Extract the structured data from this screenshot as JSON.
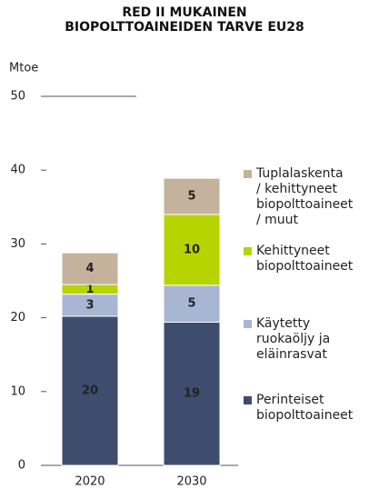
{
  "chart_data": {
    "type": "stacked_bar",
    "title": "RED II MUKAINEN\nBIOPOLTTOAINEIDEN TARVE EU28",
    "ylabel": "Mtoe",
    "categories": [
      "2020",
      "2030"
    ],
    "series": [
      {
        "name": "Perinteiset\nbiopolttoaineet",
        "color": "#3e4d6d",
        "values": [
          20.2,
          19.4
        ],
        "value_labels": [
          "20",
          "19"
        ]
      },
      {
        "name": "Käytetty\nruokaöljy ja\neläinrasvat",
        "color": "#a8b6d3",
        "values": [
          3.0,
          5.0
        ],
        "value_labels": [
          "3",
          "5"
        ]
      },
      {
        "name": "Kehittyneet\nbiopolttoaineet",
        "color": "#b6d400",
        "values": [
          1.3,
          9.6
        ],
        "value_labels": [
          "1",
          "10"
        ]
      },
      {
        "name": "Tuplalaskenta\n/ kehittyneet\nbiopolttoaineet\n/ muut",
        "color": "#c5b29d",
        "values": [
          4.3,
          4.9
        ],
        "value_labels": [
          "4",
          "5"
        ]
      }
    ],
    "ylim": [
      0,
      50
    ],
    "yticks": [
      0,
      10,
      20,
      30,
      40,
      50
    ]
  }
}
